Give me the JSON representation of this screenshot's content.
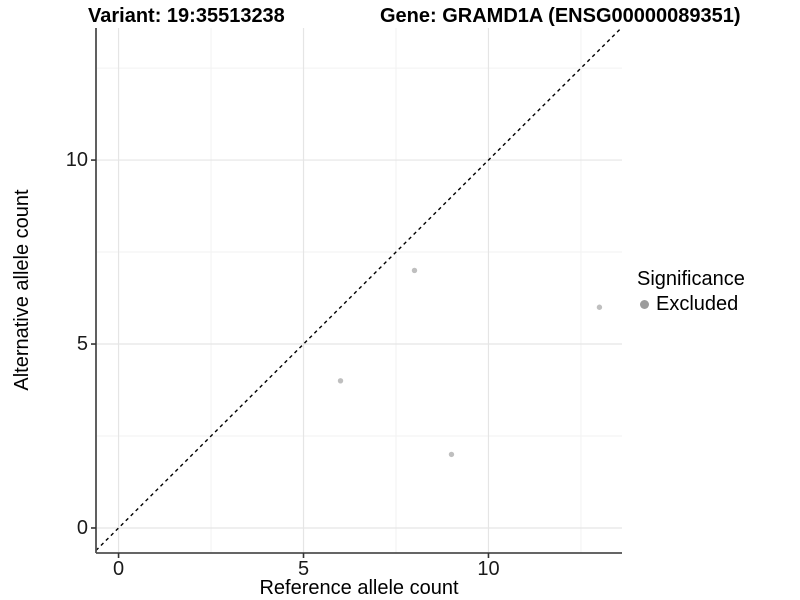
{
  "figure": {
    "background": "#ffffff",
    "variant_title": "Variant: 19:35513238",
    "gene_title": "Gene: GRAMD1A (ENSG00000089351)"
  },
  "chart_data": {
    "type": "scatter",
    "title_left": "Variant: 19:35513238",
    "title_right": "Gene: GRAMD1A (ENSG00000089351)",
    "xlabel": "Reference allele count",
    "ylabel": "Alternative allele count",
    "xlim": [
      -0.61,
      13.61
    ],
    "ylim": [
      -0.68,
      13.59
    ],
    "x_major_ticks": [
      0,
      5,
      10
    ],
    "y_major_ticks": [
      0,
      5,
      10
    ],
    "x_minor_gridlines": [
      2.5,
      7.5,
      12.5
    ],
    "y_minor_gridlines": [
      2.5,
      7.5,
      12.5
    ],
    "grid": "major and minor, light gray on white",
    "identity_line": {
      "style": "dashed",
      "color": "#000000",
      "from": [
        -0.61,
        -0.61
      ],
      "to": [
        13.59,
        13.59
      ]
    },
    "series": [
      {
        "name": "Excluded",
        "point_color": "#bfbfbf",
        "points": [
          [
            6,
            4
          ],
          [
            8,
            7
          ],
          [
            9,
            2
          ],
          [
            13,
            6
          ]
        ]
      }
    ],
    "legend": {
      "title": "Significance",
      "position": "right",
      "entries": [
        {
          "label": "Excluded",
          "color": "#9c9c9c"
        }
      ]
    },
    "colors": {
      "axis_line": "#4f4f4f",
      "tick_mark": "#333333",
      "major_grid": "#e5e5e5",
      "minor_grid": "#f2f2f2"
    }
  }
}
